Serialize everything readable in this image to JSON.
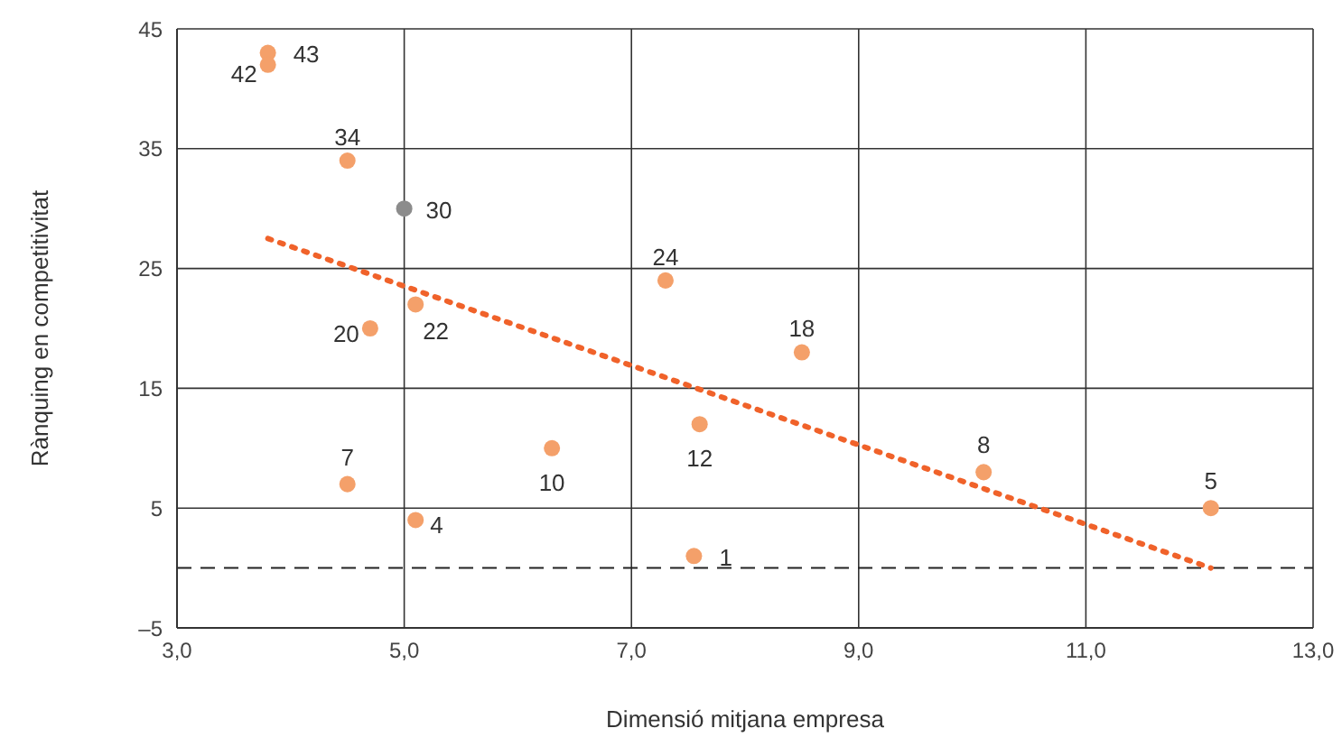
{
  "chart_data": {
    "type": "scatter",
    "xlabel": "Dimensió mitjana empresa",
    "ylabel": "Rànquing en competitivitat",
    "xlim": [
      3,
      13
    ],
    "xticks": [
      {
        "value": 3,
        "label": "3,0"
      },
      {
        "value": 5,
        "label": "5,0"
      },
      {
        "value": 7,
        "label": "7,0"
      },
      {
        "value": 9,
        "label": "9,0"
      },
      {
        "value": 11,
        "label": "11,0"
      },
      {
        "value": 13,
        "label": "13,0"
      }
    ],
    "ylim": [
      -5,
      45
    ],
    "yticks": [
      {
        "value": -5,
        "label": "–5"
      },
      5,
      15,
      25,
      35,
      45
    ],
    "grid": true,
    "series": [
      {
        "marker": "circle",
        "x": [
          3.8,
          3.8,
          4.5,
          5.0,
          7.3,
          4.7,
          5.1,
          8.5,
          7.6,
          6.3,
          4.5,
          10.1,
          12.1,
          5.1,
          7.55
        ],
        "values": [
          43,
          42,
          34,
          30,
          24,
          20,
          22,
          18,
          12,
          10,
          7,
          8,
          5,
          4,
          1
        ],
        "value_labels": [
          "43",
          "42",
          "34",
          "30",
          "24",
          "20",
          "22",
          "18",
          "12",
          "10",
          "7",
          "8",
          "5",
          "4",
          "1"
        ],
        "colors": [
          "#f4a06a",
          "#f4a06a",
          "#f4a06a",
          "#8c8c8c",
          "#f4a06a",
          "#f4a06a",
          "#f4a06a",
          "#f4a06a",
          "#f4a06a",
          "#f4a06a",
          "#f4a06a",
          "#f4a06a",
          "#f4a06a",
          "#f4a06a",
          "#f4a06a"
        ]
      },
      {
        "type": "line",
        "x": [
          3.8,
          12.1
        ],
        "values": [
          27.5,
          0
        ],
        "color": "#f0622a",
        "line_style": "dotted",
        "marker": "none"
      }
    ],
    "ref_lines": [
      {
        "axis": "y",
        "value": 0,
        "color": "#222222",
        "line_style": "dashed"
      }
    ]
  }
}
